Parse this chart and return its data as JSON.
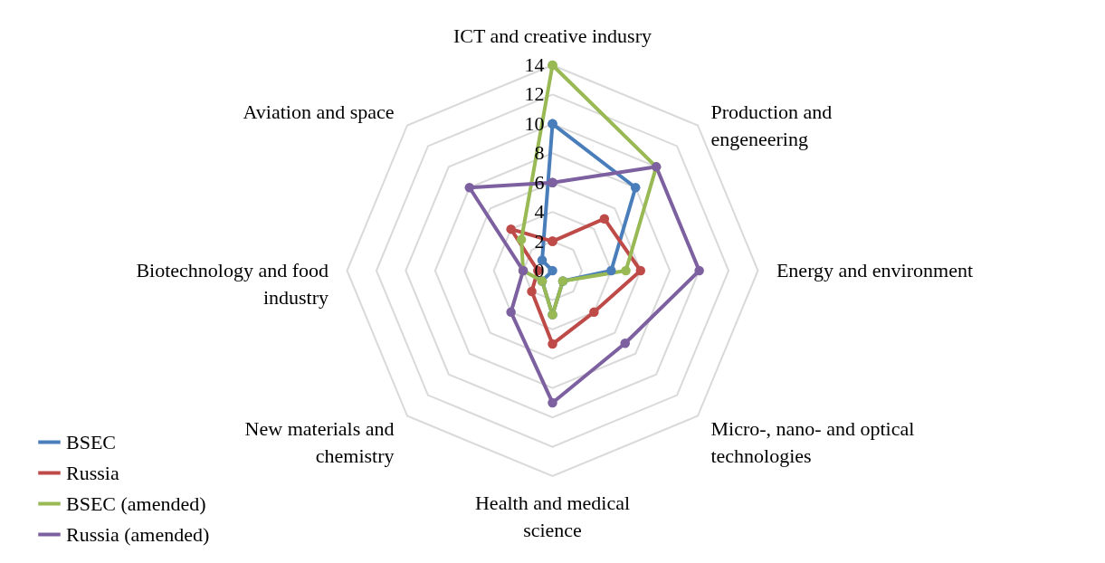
{
  "chart_data": {
    "type": "radar",
    "categories": [
      "ICT and creative indusry",
      "Production and engeneering",
      "Energy and environment",
      "Micro-, nano- and optical technologies",
      "Health and medical science",
      "New materials and chemistry",
      "Biotechnology and food industry",
      "Aviation and space"
    ],
    "series": [
      {
        "name": "BSEC",
        "color": "#4a7ebb",
        "values": [
          10,
          8,
          4,
          1,
          3,
          1,
          0,
          1
        ]
      },
      {
        "name": "Russia",
        "color": "#be4b48",
        "values": [
          2,
          5,
          6,
          4,
          5,
          2,
          1,
          4
        ]
      },
      {
        "name": "BSEC (amended)",
        "color": "#98b954",
        "values": [
          14,
          10,
          5,
          1,
          3,
          1,
          2,
          3
        ]
      },
      {
        "name": "Russia (amended)",
        "color": "#7d60a0",
        "values": [
          6,
          10,
          10,
          7,
          9,
          4,
          2,
          8
        ]
      }
    ],
    "ylim": [
      0,
      14
    ],
    "yticks": [
      0,
      2,
      4,
      6,
      8,
      10,
      12,
      14
    ],
    "grid": true,
    "legend": "bottom left",
    "marker": "circle"
  }
}
